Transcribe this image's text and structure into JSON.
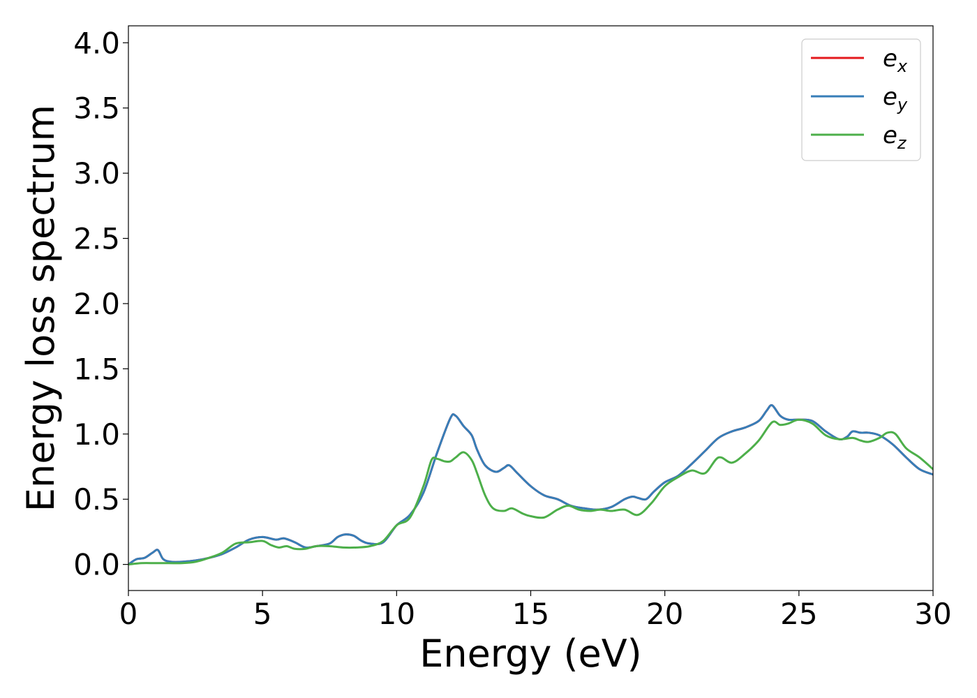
{
  "chart_data": {
    "type": "line",
    "title": "",
    "xlabel": "Energy (eV)",
    "ylabel": "Energy loss spectrum",
    "xlim": [
      0,
      30
    ],
    "ylim": [
      -0.2,
      4.13
    ],
    "xticks": [
      0,
      5,
      10,
      15,
      20,
      25,
      30
    ],
    "yticks": [
      0.0,
      0.5,
      1.0,
      1.5,
      2.0,
      2.5,
      3.0,
      3.5,
      4.0
    ],
    "xtick_labels": [
      "0",
      "5",
      "10",
      "15",
      "20",
      "25",
      "30"
    ],
    "ytick_labels": [
      "0.0",
      "0.5",
      "1.0",
      "1.5",
      "2.0",
      "2.5",
      "3.0",
      "3.5",
      "4.0"
    ],
    "grid": false,
    "legend_position": "top-right",
    "series": [
      {
        "name": "e_x",
        "base": "e",
        "sub": "x",
        "color": "#e41a1c",
        "x": [
          0,
          0.3,
          0.6,
          0.9,
          1.1,
          1.3,
          1.6,
          2.0,
          2.5,
          3.0,
          3.5,
          4.0,
          4.5,
          5.0,
          5.5,
          5.8,
          6.2,
          6.6,
          7.0,
          7.5,
          7.8,
          8.1,
          8.4,
          8.7,
          9.0,
          9.5,
          10.0,
          10.5,
          11.0,
          11.5,
          12.0,
          12.2,
          12.5,
          12.8,
          13.0,
          13.3,
          13.7,
          14.0,
          14.2,
          14.5,
          15.0,
          15.5,
          16.0,
          16.5,
          17.0,
          17.5,
          18.0,
          18.5,
          18.8,
          19.0,
          19.3,
          19.6,
          20.0,
          20.5,
          21.0,
          21.5,
          22.0,
          22.5,
          23.0,
          23.5,
          23.8,
          24.0,
          24.3,
          24.6,
          25.0,
          25.5,
          26.0,
          26.5,
          26.8,
          27.0,
          27.3,
          27.6,
          28.0,
          28.5,
          29.0,
          29.5,
          30.0
        ],
        "values": [
          0.0,
          0.04,
          0.05,
          0.09,
          0.11,
          0.04,
          0.02,
          0.02,
          0.03,
          0.05,
          0.08,
          0.13,
          0.19,
          0.21,
          0.19,
          0.2,
          0.17,
          0.13,
          0.14,
          0.16,
          0.21,
          0.23,
          0.22,
          0.18,
          0.16,
          0.17,
          0.3,
          0.38,
          0.55,
          0.85,
          1.12,
          1.14,
          1.06,
          0.99,
          0.88,
          0.76,
          0.71,
          0.74,
          0.76,
          0.7,
          0.6,
          0.53,
          0.5,
          0.45,
          0.43,
          0.42,
          0.44,
          0.5,
          0.52,
          0.51,
          0.5,
          0.56,
          0.63,
          0.68,
          0.77,
          0.87,
          0.97,
          1.02,
          1.05,
          1.1,
          1.18,
          1.22,
          1.14,
          1.11,
          1.11,
          1.1,
          1.02,
          0.96,
          0.98,
          1.02,
          1.01,
          1.01,
          0.99,
          0.92,
          0.82,
          0.73,
          0.69
        ]
      },
      {
        "name": "e_y",
        "base": "e",
        "sub": "y",
        "color": "#377eb8",
        "x": [
          0,
          0.3,
          0.6,
          0.9,
          1.1,
          1.3,
          1.6,
          2.0,
          2.5,
          3.0,
          3.5,
          4.0,
          4.5,
          5.0,
          5.5,
          5.8,
          6.2,
          6.6,
          7.0,
          7.5,
          7.8,
          8.1,
          8.4,
          8.7,
          9.0,
          9.5,
          10.0,
          10.5,
          11.0,
          11.5,
          12.0,
          12.2,
          12.5,
          12.8,
          13.0,
          13.3,
          13.7,
          14.0,
          14.2,
          14.5,
          15.0,
          15.5,
          16.0,
          16.5,
          17.0,
          17.5,
          18.0,
          18.5,
          18.8,
          19.0,
          19.3,
          19.6,
          20.0,
          20.5,
          21.0,
          21.5,
          22.0,
          22.5,
          23.0,
          23.5,
          23.8,
          24.0,
          24.3,
          24.6,
          25.0,
          25.5,
          26.0,
          26.5,
          26.8,
          27.0,
          27.3,
          27.6,
          28.0,
          28.5,
          29.0,
          29.5,
          30.0
        ],
        "values": [
          0.0,
          0.04,
          0.05,
          0.09,
          0.11,
          0.04,
          0.02,
          0.02,
          0.03,
          0.05,
          0.08,
          0.13,
          0.19,
          0.21,
          0.19,
          0.2,
          0.17,
          0.13,
          0.14,
          0.16,
          0.21,
          0.23,
          0.22,
          0.18,
          0.16,
          0.17,
          0.3,
          0.38,
          0.55,
          0.85,
          1.12,
          1.14,
          1.06,
          0.99,
          0.88,
          0.76,
          0.71,
          0.74,
          0.76,
          0.7,
          0.6,
          0.53,
          0.5,
          0.45,
          0.43,
          0.42,
          0.44,
          0.5,
          0.52,
          0.51,
          0.5,
          0.56,
          0.63,
          0.68,
          0.77,
          0.87,
          0.97,
          1.02,
          1.05,
          1.1,
          1.18,
          1.22,
          1.14,
          1.11,
          1.11,
          1.1,
          1.02,
          0.96,
          0.98,
          1.02,
          1.01,
          1.01,
          0.99,
          0.92,
          0.82,
          0.73,
          0.69
        ]
      },
      {
        "name": "e_z",
        "base": "e",
        "sub": "z",
        "color": "#4daf4a",
        "x": [
          0,
          0.5,
          1.0,
          1.5,
          2.0,
          2.5,
          3.0,
          3.5,
          4.0,
          4.5,
          5.0,
          5.3,
          5.6,
          5.9,
          6.2,
          6.6,
          7.0,
          7.5,
          8.0,
          8.5,
          9.0,
          9.5,
          10.0,
          10.5,
          11.0,
          11.3,
          11.5,
          11.8,
          12.0,
          12.2,
          12.5,
          12.8,
          13.0,
          13.3,
          13.6,
          14.0,
          14.3,
          14.7,
          15.0,
          15.5,
          16.0,
          16.4,
          16.8,
          17.2,
          17.6,
          18.0,
          18.5,
          19.0,
          19.5,
          20.0,
          20.5,
          21.0,
          21.5,
          22.0,
          22.5,
          23.0,
          23.5,
          24.0,
          24.3,
          24.6,
          25.0,
          25.5,
          26.0,
          26.5,
          27.0,
          27.3,
          27.6,
          28.0,
          28.3,
          28.6,
          29.0,
          29.5,
          30.0
        ],
        "values": [
          0.0,
          0.01,
          0.01,
          0.01,
          0.01,
          0.02,
          0.05,
          0.09,
          0.16,
          0.17,
          0.18,
          0.15,
          0.13,
          0.14,
          0.12,
          0.12,
          0.14,
          0.14,
          0.13,
          0.13,
          0.14,
          0.18,
          0.3,
          0.36,
          0.6,
          0.8,
          0.81,
          0.79,
          0.79,
          0.82,
          0.86,
          0.8,
          0.7,
          0.53,
          0.43,
          0.41,
          0.43,
          0.39,
          0.37,
          0.36,
          0.42,
          0.45,
          0.42,
          0.41,
          0.42,
          0.41,
          0.42,
          0.38,
          0.47,
          0.6,
          0.67,
          0.72,
          0.7,
          0.82,
          0.78,
          0.85,
          0.95,
          1.09,
          1.07,
          1.08,
          1.11,
          1.08,
          0.99,
          0.96,
          0.97,
          0.95,
          0.94,
          0.97,
          1.01,
          1.0,
          0.89,
          0.82,
          0.73
        ]
      }
    ]
  }
}
